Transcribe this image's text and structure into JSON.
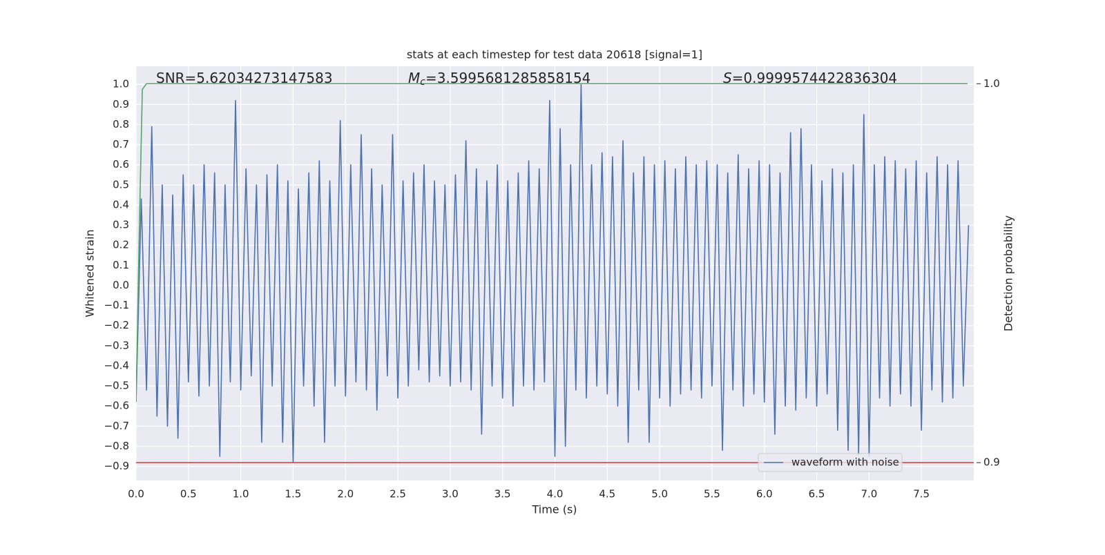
{
  "chart_data": {
    "type": "line",
    "title": "stats at each timestep for test data 20618 [signal=1]",
    "x_label": "Time (s)",
    "y_label": "Whitened strain",
    "y2_label": "Detection probability",
    "annotations": [
      {
        "text": "SNR=5.62034273147583"
      },
      {
        "symbol": "M",
        "subscript": "c",
        "text": "=3.5995681285858154"
      },
      {
        "symbol": "S",
        "text": "=0.9999574422836304"
      }
    ],
    "xlim": [
      0,
      8
    ],
    "xticks": [
      {
        "value": 0,
        "label": "0.0"
      },
      0.5,
      {
        "value": 1,
        "label": "1.0"
      },
      1.5,
      {
        "value": 2,
        "label": "2.0"
      },
      2.5,
      {
        "value": 3,
        "label": "3.0"
      },
      3.5,
      {
        "value": 4,
        "label": "4.0"
      },
      4.5,
      {
        "value": 5,
        "label": "5.0"
      },
      5.5,
      {
        "value": 6,
        "label": "6.0"
      },
      6.5,
      {
        "value": 7,
        "label": "7.0"
      },
      7.5
    ],
    "ylim": [
      -0.97,
      1.09
    ],
    "yticks": [
      {
        "value": -0.9,
        "label": "−0.9"
      },
      {
        "value": -0.8,
        "label": "−0.8"
      },
      {
        "value": -0.7,
        "label": "−0.7"
      },
      {
        "value": -0.6,
        "label": "−0.6"
      },
      {
        "value": -0.5,
        "label": "−0.5"
      },
      {
        "value": -0.4,
        "label": "−0.4"
      },
      {
        "value": -0.3,
        "label": "−0.3"
      },
      {
        "value": -0.2,
        "label": "−0.2"
      },
      {
        "value": -0.1,
        "label": "−0.1"
      },
      {
        "value": 0,
        "label": "0.0"
      },
      0.1,
      0.2,
      0.3,
      0.4,
      0.5,
      0.6,
      0.7,
      0.8,
      0.9,
      {
        "value": 1,
        "label": "1.0"
      }
    ],
    "y2lim": [
      0.8953,
      1.0046
    ],
    "y2ticks": [
      0.9,
      {
        "value": 1,
        "label": "1.0"
      }
    ],
    "grid": true,
    "legend": "lower right",
    "series": [
      {
        "name": "waveform with noise",
        "color": "#4c72b0",
        "x": [
          0,
          0.05,
          0.1,
          0.15,
          0.2,
          0.25,
          0.3,
          0.35,
          0.4,
          0.45,
          0.5,
          0.55,
          0.6,
          0.65,
          0.7,
          0.75,
          0.8,
          0.85,
          0.9,
          0.95,
          1,
          1.05,
          1.1,
          1.15,
          1.2,
          1.25,
          1.3,
          1.35,
          1.4,
          1.45,
          1.5,
          1.55,
          1.6,
          1.65,
          1.7,
          1.75,
          1.8,
          1.85,
          1.9,
          1.95,
          2,
          2.05,
          2.1,
          2.15,
          2.2,
          2.25,
          2.3,
          2.35,
          2.4,
          2.45,
          2.5,
          2.55,
          2.6,
          2.65,
          2.7,
          2.75,
          2.8,
          2.85,
          2.9,
          2.95,
          3,
          3.05,
          3.1,
          3.15,
          3.2,
          3.25,
          3.3,
          3.35,
          3.4,
          3.45,
          3.5,
          3.55,
          3.6,
          3.65,
          3.7,
          3.75,
          3.8,
          3.85,
          3.9,
          3.95,
          4,
          4.05,
          4.1,
          4.15,
          4.2,
          4.25,
          4.3,
          4.35,
          4.4,
          4.45,
          4.5,
          4.55,
          4.6,
          4.65,
          4.7,
          4.75,
          4.8,
          4.85,
          4.9,
          4.95,
          5,
          5.05,
          5.1,
          5.15,
          5.2,
          5.25,
          5.3,
          5.35,
          5.4,
          5.45,
          5.5,
          5.55,
          5.6,
          5.65,
          5.7,
          5.75,
          5.8,
          5.85,
          5.9,
          5.95,
          6,
          6.05,
          6.1,
          6.15,
          6.2,
          6.25,
          6.3,
          6.35,
          6.4,
          6.45,
          6.5,
          6.55,
          6.6,
          6.65,
          6.7,
          6.75,
          6.8,
          6.85,
          6.9,
          6.95,
          7,
          7.05,
          7.1,
          7.15,
          7.2,
          7.25,
          7.3,
          7.35,
          7.4,
          7.45,
          7.5,
          7.55,
          7.6,
          7.65,
          7.7,
          7.75,
          7.8,
          7.85,
          7.9,
          7.95
        ],
        "values": [
          -0.58,
          0.43,
          -0.52,
          0.79,
          -0.65,
          0.5,
          -0.7,
          0.45,
          -0.76,
          0.55,
          -0.48,
          0.5,
          -0.55,
          0.6,
          -0.5,
          0.56,
          -0.85,
          0.5,
          -0.48,
          0.92,
          -0.52,
          0.58,
          -0.45,
          0.5,
          -0.78,
          0.55,
          -0.5,
          0.6,
          -0.78,
          0.52,
          -0.88,
          0.48,
          -0.5,
          0.56,
          -0.6,
          0.62,
          -0.78,
          0.52,
          -0.5,
          0.82,
          -0.55,
          0.6,
          -0.48,
          0.75,
          -0.52,
          0.58,
          -0.62,
          0.5,
          -0.45,
          0.75,
          -0.56,
          0.52,
          -0.5,
          0.56,
          -0.42,
          0.6,
          -0.48,
          0.52,
          -0.45,
          0.5,
          -0.5,
          0.55,
          -0.48,
          0.72,
          -0.52,
          0.58,
          -0.74,
          0.52,
          -0.5,
          0.6,
          -0.56,
          0.52,
          -0.6,
          0.56,
          -0.5,
          0.62,
          -0.52,
          0.58,
          -0.48,
          0.92,
          -0.85,
          0.78,
          -0.8,
          0.6,
          -0.52,
          1.0,
          -0.56,
          0.6,
          -0.5,
          0.66,
          -0.54,
          0.64,
          -0.6,
          0.72,
          -0.78,
          0.56,
          -0.52,
          0.64,
          -0.78,
          0.6,
          -0.56,
          0.62,
          -0.6,
          0.58,
          -0.54,
          0.64,
          -0.52,
          0.6,
          -0.56,
          0.62,
          -0.5,
          0.6,
          -0.82,
          0.56,
          -0.52,
          0.65,
          -0.6,
          0.58,
          -0.54,
          0.62,
          -0.58,
          0.6,
          -0.74,
          0.56,
          -0.6,
          0.76,
          -0.62,
          0.78,
          -0.56,
          0.6,
          -0.6,
          0.52,
          -0.54,
          0.58,
          -0.72,
          0.56,
          -0.82,
          0.6,
          -0.84,
          0.85,
          -0.85,
          0.6,
          -0.56,
          0.64,
          -0.6,
          0.62,
          -0.54,
          0.58,
          -0.6,
          0.62,
          -0.72,
          0.56,
          -0.52,
          0.64,
          -0.58,
          0.6,
          -0.56,
          0.62,
          -0.5,
          0.3
        ]
      }
    ],
    "y2_series": [
      {
        "color": "#55a868",
        "axis": "y2",
        "x": [
          0,
          0.03,
          0.06,
          0.1,
          7.94
        ],
        "values": [
          0.9164,
          0.96,
          0.9985,
          1.0,
          1.0
        ]
      },
      {
        "color": "#c44e52",
        "axis": "y2",
        "x": [
          0,
          8
        ],
        "values": [
          0.9,
          0.9
        ]
      }
    ]
  }
}
